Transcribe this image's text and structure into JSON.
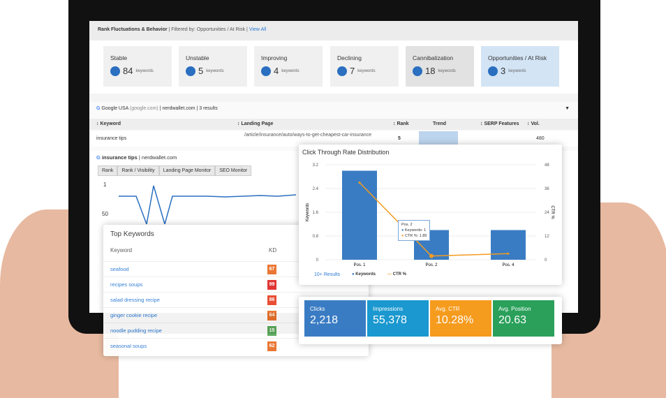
{
  "filter_bar": {
    "title": "Rank Fluctuations & Behavior",
    "filter": "| Filtered by: Opportunities / At Risk |",
    "view_all": "View All"
  },
  "cards": [
    {
      "label": "Stable",
      "count": "84",
      "unit": "keywords"
    },
    {
      "label": "Unstable",
      "count": "5",
      "unit": "keywords"
    },
    {
      "label": "Improving",
      "count": "4",
      "unit": "keywords"
    },
    {
      "label": "Declining",
      "count": "7",
      "unit": "keywords"
    },
    {
      "label": "Cannibalization",
      "count": "18",
      "unit": "keywords"
    },
    {
      "label": "Opportunities / At Risk",
      "count": "3",
      "unit": "keywords"
    }
  ],
  "table": {
    "source": "Google USA",
    "source_domain": "(google.com)",
    "site": "| nerdwallet.com | 3 results",
    "headers": {
      "keyword": "↕ Keyword",
      "landing": "↕ Landing Page",
      "rank": "↕ Rank",
      "trend": "Trend",
      "serp": "↕ SERP Features",
      "vol": "↕ Vol."
    },
    "row": {
      "keyword": "insurance tips",
      "landing": "/article/insurance/auto/ways-to-get-cheapest-car-insurance",
      "rank": "5",
      "vol": "480"
    }
  },
  "detail": {
    "keyword": "insurance tips",
    "site": "| nerdwallet.com",
    "tabs": [
      "Rank",
      "Rank / Visibility",
      "Landing Page Monitor",
      "SEO Monitor"
    ],
    "y_ticks": [
      "1",
      "50"
    ]
  },
  "top_keywords": {
    "title": "Top Keywords",
    "col_keyword": "Keyword",
    "col_kd": "KD",
    "rows": [
      {
        "keyword": "seafood",
        "kd": "67",
        "color": "#e8702a"
      },
      {
        "keyword": "recipes soups",
        "kd": "99",
        "color": "#e02b2b"
      },
      {
        "keyword": "salad dressing recipe",
        "kd": "86",
        "color": "#e8452a"
      },
      {
        "keyword": "ginger cookie recipe",
        "kd": "64",
        "color": "#e8702a"
      },
      {
        "keyword": "noodle pudding recipe",
        "kd": "15",
        "color": "#5aa85a"
      },
      {
        "keyword": "seasonal soups",
        "kd": "62",
        "color": "#e8702a"
      }
    ]
  },
  "chart_data": {
    "type": "bar",
    "title": "Click Through Rate Distribution",
    "categories": [
      "Pos. 1",
      "Pos. 2",
      "Pos. 4"
    ],
    "series": [
      {
        "name": "Keywords",
        "type": "bar",
        "values": [
          3,
          1,
          1
        ]
      },
      {
        "name": "CTR %",
        "type": "line",
        "values": [
          39,
          1.89,
          3.1
        ]
      }
    ],
    "ylabel": "Keywords",
    "y2label": "CTR %",
    "ylim": [
      0,
      3.2
    ],
    "y2lim": [
      0,
      48
    ],
    "y_ticks": [
      "0",
      "0.8",
      "1.6",
      "2.4",
      "3.2"
    ],
    "y2_ticks": [
      "0",
      "12",
      "24",
      "36",
      "48"
    ],
    "tooltip": {
      "title": "Pos. 2",
      "keywords": "Keywords: 1",
      "ctr": "CTR %: 1.89"
    },
    "more": "10+ Results",
    "legend": [
      "Keywords",
      "CTR %"
    ]
  },
  "metrics": [
    {
      "label": "Clicks",
      "value": "2,218",
      "color": "#3a7cc3"
    },
    {
      "label": "Impressions",
      "value": "55,378",
      "color": "#1a98cf"
    },
    {
      "label": "Avg. CTR",
      "value": "10.28%",
      "color": "#f59b1e"
    },
    {
      "label": "Avg. Position",
      "value": "20.63",
      "color": "#2aa05a"
    }
  ]
}
